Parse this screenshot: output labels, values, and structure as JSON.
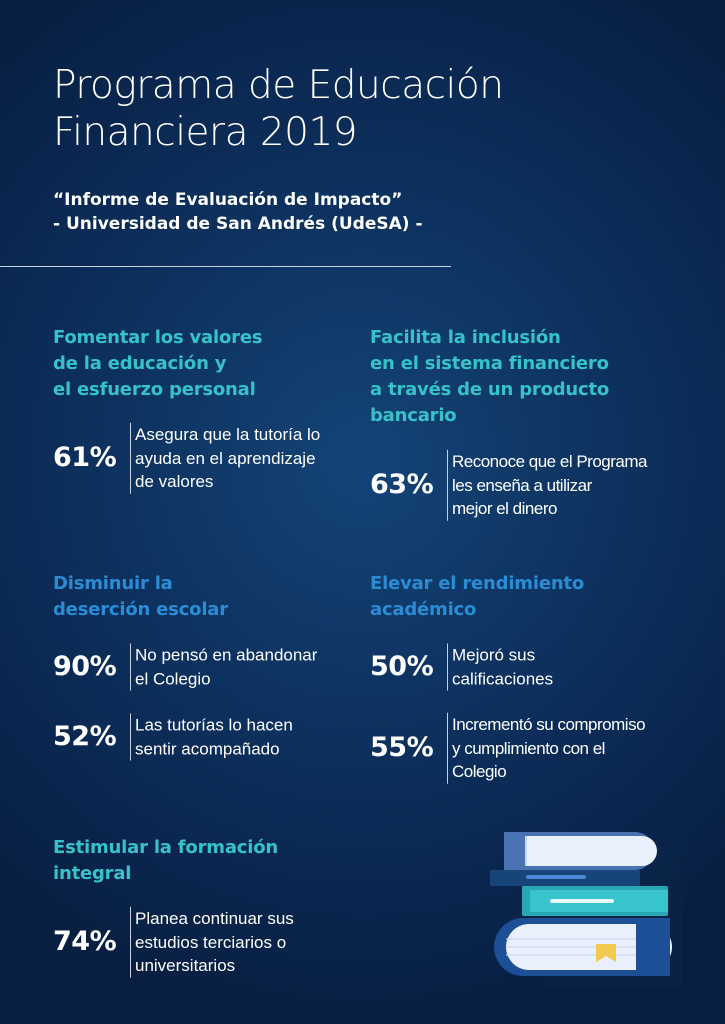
{
  "header": {
    "title_lines": [
      "Programa de Educación",
      "Financiera 2019"
    ],
    "subtitle_lines": [
      "“Informe de Evaluación de Impacto”",
      "- Universidad de San Andrés (UdeSA) -"
    ]
  },
  "sections": [
    {
      "heading_lines": [
        "Fomentar los valores",
        "de la educación y",
        "el esfuerzo personal"
      ],
      "stats": [
        {
          "value": "61%",
          "desc_lines": [
            "Asegura que la tutoría lo",
            "ayuda en el aprendizaje",
            "de valores"
          ]
        }
      ]
    },
    {
      "heading_lines": [
        "Facilita la inclusión",
        "en el sistema financiero",
        "a través de un producto",
        "bancario"
      ],
      "stats": [
        {
          "value": "63%",
          "desc_lines": [
            "Reconoce que el Programa",
            "les enseña a utilizar",
            "mejor el dinero"
          ]
        }
      ]
    },
    {
      "heading_lines": [
        "Disminuir la",
        "deserción escolar"
      ],
      "stats": [
        {
          "value": "90%",
          "desc_lines": [
            "No pensó en abandonar",
            "el Colegio"
          ]
        },
        {
          "value": "52%",
          "desc_lines": [
            "Las tutorías lo hacen",
            "sentir acompañado"
          ]
        }
      ]
    },
    {
      "heading_lines": [
        "Elevar el rendimiento",
        "académico"
      ],
      "stats": [
        {
          "value": "50%",
          "desc_lines": [
            "Mejoró sus",
            "calificaciones"
          ]
        },
        {
          "value": "55%",
          "desc_lines": [
            "Incrementó su compromiso",
            "y cumplimiento con el",
            "Colegio"
          ]
        }
      ]
    },
    {
      "heading_lines": [
        "Estimular la formación",
        "integral"
      ],
      "stats": [
        {
          "value": "74%",
          "desc_lines": [
            "Planea continuar sus",
            "estudios terciarios o",
            "universitarios"
          ]
        }
      ]
    }
  ],
  "colors": {
    "background": "#0a2750",
    "accent_teal": "#36c2c9",
    "accent_blue": "#2b8cd6",
    "text": "#ffffff"
  },
  "illustration": {
    "icon": "stack-of-books-icon"
  }
}
